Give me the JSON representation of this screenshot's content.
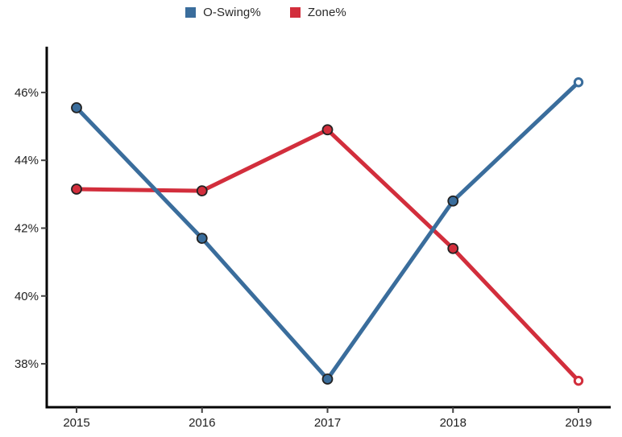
{
  "chart_data": {
    "type": "line",
    "x": [
      "2015",
      "2016",
      "2017",
      "2018",
      "2019"
    ],
    "series": [
      {
        "name": "O-Swing%",
        "color": "#3A6D9C",
        "values": [
          45.55,
          41.7,
          37.55,
          42.8,
          46.3
        ],
        "open_markers": [
          false,
          false,
          false,
          false,
          true
        ]
      },
      {
        "name": "Zone%",
        "color": "#D22E3C",
        "values": [
          43.15,
          43.1,
          44.9,
          41.4,
          37.5
        ],
        "open_markers": [
          false,
          false,
          false,
          false,
          true
        ]
      }
    ],
    "title": "",
    "xlabel": "",
    "ylabel": "",
    "yticks": [
      38,
      40,
      42,
      44,
      46
    ],
    "ytick_labels": [
      "38%",
      "40%",
      "42%",
      "44%",
      "46%"
    ],
    "ylim": [
      36.72,
      47.35
    ],
    "grid": false,
    "legend_position": "top-center",
    "axis_color": "#000000",
    "tick_color": "#444444",
    "tick_label_color": "#1f1f1f",
    "marker_edge_color": "#222222",
    "background_color": "#ffffff"
  }
}
